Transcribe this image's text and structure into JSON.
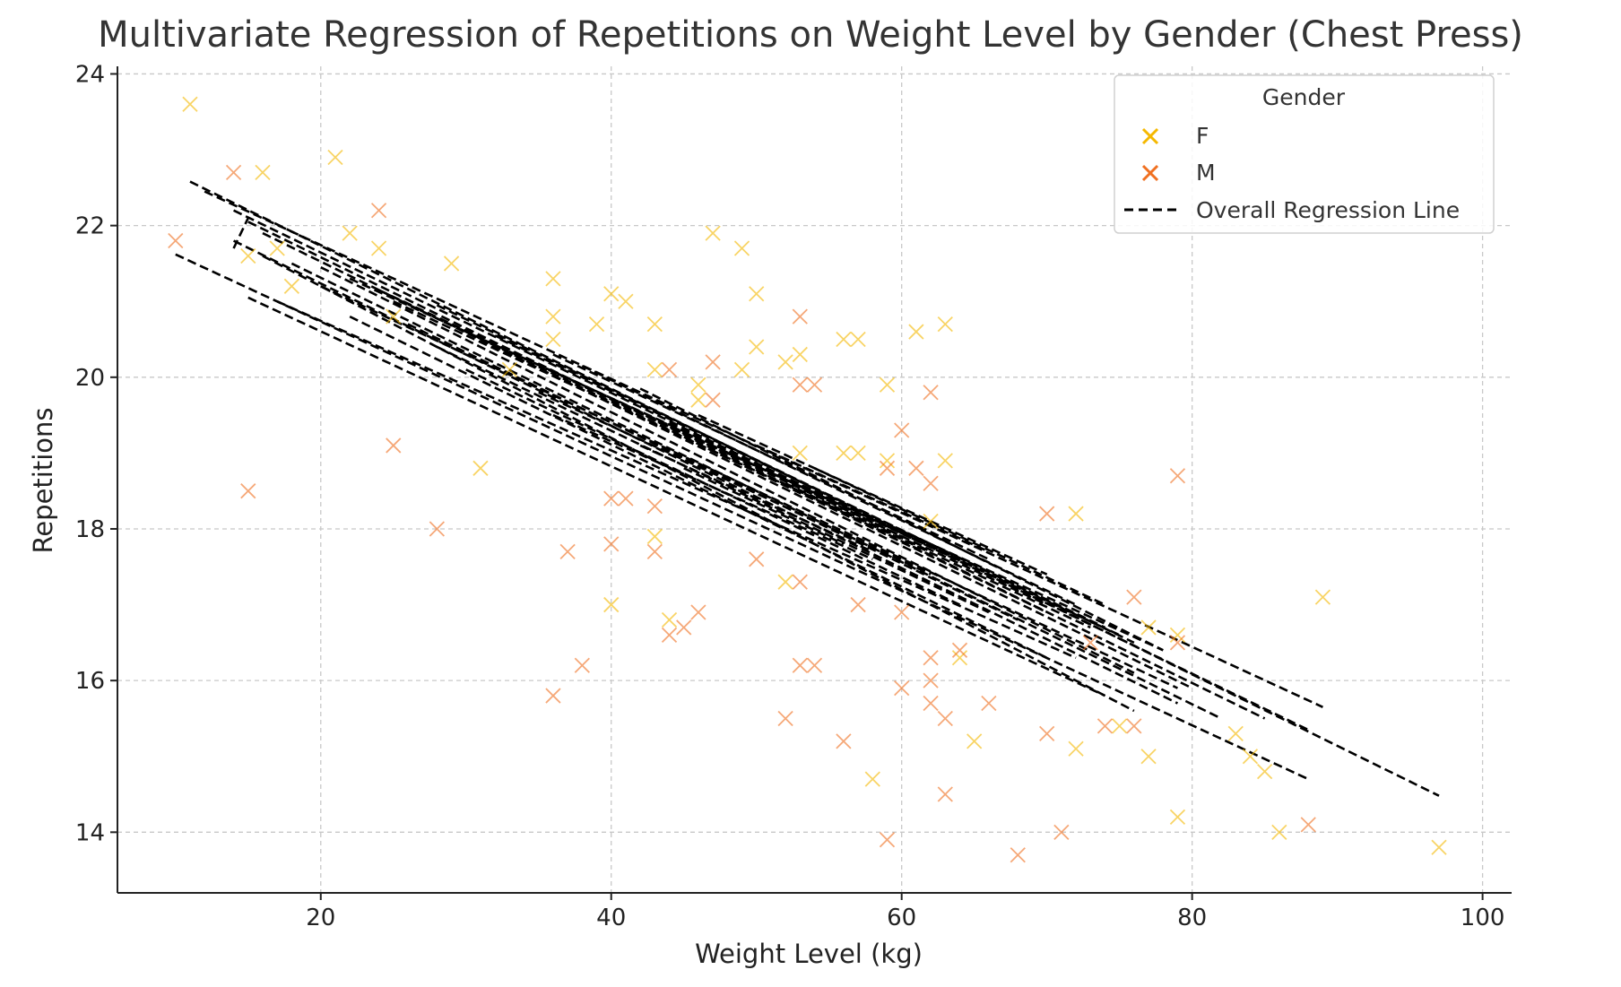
{
  "chart_data": {
    "type": "scatter",
    "title": "Multivariate Regression of Repetitions on Weight Level by Gender (Chest Press)",
    "xlabel": "Weight Level (kg)",
    "ylabel": "Repetitions",
    "xlim": [
      6,
      102
    ],
    "ylim": [
      13.2,
      24.1
    ],
    "x_ticks": [
      20,
      40,
      60,
      80,
      100
    ],
    "y_ticks": [
      14,
      16,
      18,
      20,
      22,
      24
    ],
    "grid": true,
    "legend": {
      "title": "Gender",
      "placement": "top-right",
      "entries": [
        "F",
        "M",
        "Overall Regression Line"
      ]
    },
    "colors": {
      "F": "#f5b800",
      "M": "#f07020",
      "regression": "#000000"
    },
    "series": [
      {
        "name": "F",
        "marker": "x",
        "points": [
          [
            11,
            23.6
          ],
          [
            16,
            22.7
          ],
          [
            21,
            22.9
          ],
          [
            22,
            21.9
          ],
          [
            24,
            21.7
          ],
          [
            15,
            21.6
          ],
          [
            17,
            21.7
          ],
          [
            18,
            21.2
          ],
          [
            29,
            21.5
          ],
          [
            36,
            21.3
          ],
          [
            36,
            20.8
          ],
          [
            39,
            20.7
          ],
          [
            40,
            21.1
          ],
          [
            41,
            21.0
          ],
          [
            43,
            20.7
          ],
          [
            43,
            20.1
          ],
          [
            47,
            21.9
          ],
          [
            49,
            21.7
          ],
          [
            50,
            21.1
          ],
          [
            50,
            20.4
          ],
          [
            49,
            20.1
          ],
          [
            52,
            20.2
          ],
          [
            53,
            20.3
          ],
          [
            56,
            20.5
          ],
          [
            57,
            20.5
          ],
          [
            61,
            20.6
          ],
          [
            63,
            20.7
          ],
          [
            46,
            19.9
          ],
          [
            46,
            19.7
          ],
          [
            59,
            19.9
          ],
          [
            59,
            18.9
          ],
          [
            63,
            18.9
          ],
          [
            56,
            19.0
          ],
          [
            57,
            19.0
          ],
          [
            53,
            19.0
          ],
          [
            31,
            18.8
          ],
          [
            43,
            17.9
          ],
          [
            40,
            17.0
          ],
          [
            44,
            16.8
          ],
          [
            52,
            17.3
          ],
          [
            72,
            18.2
          ],
          [
            64,
            16.3
          ],
          [
            65,
            15.2
          ],
          [
            72,
            15.1
          ],
          [
            75,
            15.4
          ],
          [
            77,
            15.0
          ],
          [
            77,
            16.7
          ],
          [
            79,
            16.6
          ],
          [
            83,
            15.3
          ],
          [
            84,
            15.0
          ],
          [
            85,
            14.8
          ],
          [
            79,
            14.2
          ],
          [
            86,
            14.0
          ],
          [
            89,
            17.1
          ],
          [
            97,
            13.8
          ],
          [
            58,
            14.7
          ],
          [
            36,
            20.5
          ],
          [
            25,
            20.8
          ],
          [
            33,
            20.1
          ],
          [
            62,
            18.1
          ]
        ]
      },
      {
        "name": "M",
        "marker": "x",
        "points": [
          [
            10,
            21.8
          ],
          [
            14,
            22.7
          ],
          [
            24,
            22.2
          ],
          [
            15,
            18.5
          ],
          [
            25,
            19.1
          ],
          [
            28,
            18.0
          ],
          [
            37,
            17.7
          ],
          [
            38,
            16.2
          ],
          [
            36,
            15.8
          ],
          [
            40,
            18.4
          ],
          [
            40,
            17.8
          ],
          [
            41,
            18.4
          ],
          [
            43,
            18.3
          ],
          [
            43,
            17.7
          ],
          [
            44,
            20.1
          ],
          [
            44,
            16.6
          ],
          [
            45,
            16.7
          ],
          [
            46,
            16.9
          ],
          [
            47,
            20.2
          ],
          [
            47,
            19.7
          ],
          [
            50,
            17.6
          ],
          [
            52,
            15.5
          ],
          [
            53,
            20.8
          ],
          [
            53,
            19.9
          ],
          [
            54,
            19.9
          ],
          [
            53,
            17.3
          ],
          [
            53,
            16.2
          ],
          [
            54,
            16.2
          ],
          [
            56,
            15.2
          ],
          [
            57,
            17.0
          ],
          [
            59,
            18.8
          ],
          [
            59,
            13.9
          ],
          [
            60,
            19.3
          ],
          [
            60,
            15.9
          ],
          [
            60,
            16.9
          ],
          [
            61,
            18.8
          ],
          [
            62,
            19.8
          ],
          [
            62,
            18.6
          ],
          [
            62,
            16.3
          ],
          [
            62,
            16.0
          ],
          [
            62,
            15.7
          ],
          [
            63,
            15.5
          ],
          [
            63,
            14.5
          ],
          [
            64,
            16.4
          ],
          [
            66,
            15.7
          ],
          [
            68,
            13.7
          ],
          [
            70,
            18.2
          ],
          [
            70,
            15.3
          ],
          [
            71,
            14.0
          ],
          [
            74,
            15.4
          ],
          [
            76,
            17.1
          ],
          [
            76,
            15.4
          ],
          [
            79,
            18.7
          ],
          [
            79,
            16.5
          ],
          [
            88,
            14.1
          ],
          [
            73,
            16.5
          ]
        ]
      }
    ],
    "regression_band": {
      "name": "Overall Regression Line",
      "line_style": "dashed",
      "segments": [
        [
          11,
          22.58,
          97,
          14.48
        ],
        [
          10,
          21.62,
          88,
          14.7
        ],
        [
          12,
          22.45,
          89,
          15.65
        ],
        [
          14,
          22.2,
          88,
          15.35
        ],
        [
          15,
          22.05,
          85,
          15.5
        ],
        [
          16,
          21.9,
          80,
          15.9
        ],
        [
          14,
          21.8,
          79,
          15.7
        ],
        [
          16,
          21.6,
          76,
          15.6
        ],
        [
          18,
          21.5,
          82,
          15.5
        ],
        [
          20,
          21.45,
          76,
          16.1
        ],
        [
          15,
          21.05,
          74,
          15.8
        ],
        [
          17,
          21.0,
          72,
          16.3
        ],
        [
          20,
          21.2,
          79,
          15.9
        ],
        [
          22,
          21.3,
          78,
          16.4
        ],
        [
          24,
          21.15,
          75,
          16.6
        ],
        [
          22,
          20.8,
          70,
          16.3
        ],
        [
          25,
          21.0,
          73,
          16.7
        ],
        [
          26,
          20.7,
          68,
          16.8
        ],
        [
          28,
          20.95,
          76,
          16.5
        ],
        [
          30,
          20.6,
          70,
          16.9
        ],
        [
          28,
          20.4,
          66,
          16.9
        ],
        [
          32,
          20.55,
          74,
          16.7
        ],
        [
          34,
          20.25,
          70,
          17.0
        ],
        [
          30,
          20.1,
          64,
          17.0
        ],
        [
          36,
          20.3,
          66,
          17.6
        ],
        [
          35,
          19.8,
          62,
          17.4
        ],
        [
          38,
          20.15,
          72,
          17.0
        ],
        [
          40,
          19.7,
          64,
          17.6
        ],
        [
          36,
          19.5,
          58,
          17.6
        ],
        [
          42,
          19.85,
          78,
          16.4
        ],
        [
          44,
          19.4,
          60,
          17.9
        ],
        [
          42,
          19.1,
          58,
          17.7
        ],
        [
          46,
          19.5,
          70,
          17.4
        ],
        [
          48,
          19.0,
          62,
          17.8
        ],
        [
          45,
          18.8,
          56,
          17.8
        ],
        [
          50,
          19.1,
          66,
          17.7
        ],
        [
          52,
          18.6,
          62,
          17.7
        ],
        [
          54,
          18.8,
          74,
          17.0
        ],
        [
          14,
          21.7,
          15,
          22.1
        ]
      ]
    }
  }
}
